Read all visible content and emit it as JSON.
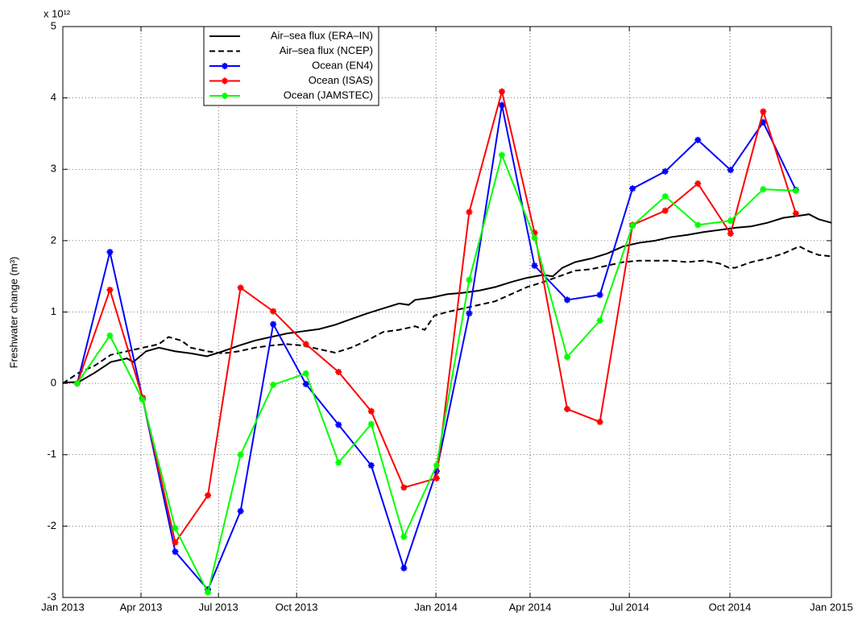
{
  "chart_data": {
    "type": "line",
    "ylabel": "Freshwater change (m³)",
    "y_multiplier": "x 10¹²",
    "xlim": [
      0,
      24
    ],
    "xticks": [
      {
        "value": 0,
        "label": "Jan 2013"
      },
      {
        "value": 2.44,
        "label": "Apr 2013"
      },
      {
        "value": 4.86,
        "label": "Jul 2013"
      },
      {
        "value": 7.3,
        "label": "Oct 2013"
      },
      {
        "value": 11.65,
        "label": "Jan 2014"
      },
      {
        "value": 14.59,
        "label": "Apr 2014"
      },
      {
        "value": 17.69,
        "label": "Jul 2014"
      },
      {
        "value": 20.83,
        "label": "Oct 2014"
      },
      {
        "value": 24,
        "label": "Jan 2015"
      }
    ],
    "ylim": [
      -3,
      5
    ],
    "yticks": [
      -3,
      -2,
      -1,
      0,
      1,
      2,
      3,
      4,
      5
    ],
    "grid": true,
    "legend": "upper-left",
    "series": [
      {
        "name": "Air–sea flux (ERA–IN)",
        "color": "#000000",
        "line_style": "solid",
        "marker": "none",
        "x": [
          0,
          0.5,
          1,
          1.5,
          2,
          2.2,
          2.6,
          3,
          3.5,
          4,
          4.5,
          5,
          5.5,
          6,
          6.5,
          7,
          7.5,
          8,
          8.5,
          9,
          9.5,
          10,
          10.5,
          10.8,
          11,
          11.5,
          12,
          12.5,
          13,
          13.5,
          14,
          14.5,
          15,
          15.3,
          15.6,
          16,
          16.5,
          17,
          17.5,
          18,
          18.5,
          19,
          19.5,
          20,
          20.5,
          21,
          21.5,
          22,
          22.5,
          23,
          23.3,
          23.6,
          24
        ],
        "values": [
          0.01,
          0.02,
          0.15,
          0.3,
          0.35,
          0.3,
          0.45,
          0.5,
          0.45,
          0.42,
          0.38,
          0.45,
          0.53,
          0.6,
          0.65,
          0.7,
          0.73,
          0.76,
          0.82,
          0.9,
          0.98,
          1.05,
          1.12,
          1.1,
          1.17,
          1.2,
          1.25,
          1.27,
          1.3,
          1.35,
          1.42,
          1.48,
          1.52,
          1.5,
          1.62,
          1.7,
          1.75,
          1.82,
          1.92,
          1.97,
          2.0,
          2.05,
          2.08,
          2.12,
          2.15,
          2.18,
          2.2,
          2.25,
          2.32,
          2.35,
          2.37,
          2.3,
          2.25
        ]
      },
      {
        "name": "Air–sea flux (NCEP)",
        "color": "#000000",
        "line_style": "dashed",
        "marker": "none",
        "x": [
          0,
          0.5,
          1,
          1.5,
          2,
          2.5,
          3,
          3.3,
          3.7,
          4,
          4.5,
          5,
          5.5,
          6,
          6.5,
          7,
          7.5,
          8,
          8.5,
          9,
          9.5,
          10,
          10.5,
          11,
          11.3,
          11.6,
          12,
          12.5,
          13,
          13.5,
          14,
          14.5,
          15,
          15.5,
          16,
          16.5,
          17,
          17.5,
          18,
          18.5,
          19,
          19.5,
          20,
          20.5,
          20.8,
          21,
          21.5,
          22,
          22.5,
          23,
          23.3,
          23.6,
          24
        ],
        "values": [
          0.0,
          0.15,
          0.25,
          0.4,
          0.45,
          0.5,
          0.55,
          0.65,
          0.6,
          0.5,
          0.45,
          0.42,
          0.45,
          0.5,
          0.53,
          0.55,
          0.53,
          0.48,
          0.43,
          0.5,
          0.6,
          0.72,
          0.75,
          0.8,
          0.75,
          0.95,
          1.0,
          1.05,
          1.1,
          1.15,
          1.25,
          1.35,
          1.42,
          1.5,
          1.58,
          1.6,
          1.65,
          1.7,
          1.72,
          1.72,
          1.72,
          1.7,
          1.72,
          1.68,
          1.62,
          1.62,
          1.7,
          1.75,
          1.82,
          1.92,
          1.85,
          1.8,
          1.78
        ]
      },
      {
        "name": "Ocean (EN4)",
        "color": "#0000ff",
        "line_style": "solid",
        "marker": "asterisk",
        "x": [
          0.45,
          1.47,
          2.49,
          3.51,
          4.53,
          5.55,
          6.57,
          7.59,
          8.61,
          9.63,
          10.65,
          11.67,
          12.69,
          13.71,
          14.73,
          15.75,
          16.77,
          17.79,
          18.81,
          19.83,
          20.85,
          21.87,
          22.89
        ],
        "values": [
          0,
          1.84,
          -0.21,
          -2.36,
          -2.89,
          -1.79,
          0.83,
          -0.01,
          -0.58,
          -1.15,
          -2.59,
          -1.23,
          0.98,
          3.9,
          1.65,
          1.17,
          1.24,
          2.73,
          2.97,
          3.41,
          2.99,
          3.66,
          2.71
        ]
      },
      {
        "name": "Ocean (ISAS)",
        "color": "#ff0000",
        "line_style": "solid",
        "marker": "asterisk",
        "x": [
          0.45,
          1.47,
          2.49,
          3.51,
          4.53,
          5.55,
          6.57,
          7.59,
          8.61,
          9.63,
          10.65,
          11.67,
          12.69,
          13.71,
          14.73,
          15.75,
          16.77,
          17.79,
          18.81,
          19.83,
          20.85,
          21.87,
          22.89
        ],
        "values": [
          0,
          1.31,
          -0.2,
          -2.23,
          -1.57,
          1.34,
          1.01,
          0.55,
          0.16,
          -0.39,
          -1.46,
          -1.33,
          2.4,
          4.09,
          2.11,
          -0.36,
          -0.54,
          2.22,
          2.42,
          2.8,
          2.1,
          3.81,
          2.38
        ]
      },
      {
        "name": "Ocean (JAMSTEC)",
        "color": "#00ff00",
        "line_style": "solid",
        "marker": "asterisk",
        "x": [
          0.45,
          1.47,
          2.49,
          3.51,
          4.53,
          5.55,
          6.57,
          7.59,
          8.61,
          9.63,
          10.65,
          11.67,
          12.69,
          13.71,
          14.73,
          15.75,
          16.77,
          17.79,
          18.81,
          19.83,
          20.85,
          21.87,
          22.89
        ],
        "values": [
          0,
          0.67,
          -0.23,
          -2.03,
          -2.93,
          -1.0,
          -0.02,
          0.14,
          -1.11,
          -0.57,
          -2.15,
          -1.15,
          1.45,
          3.2,
          2.04,
          0.37,
          0.88,
          2.21,
          2.62,
          2.22,
          2.28,
          2.72,
          2.7
        ]
      }
    ]
  }
}
